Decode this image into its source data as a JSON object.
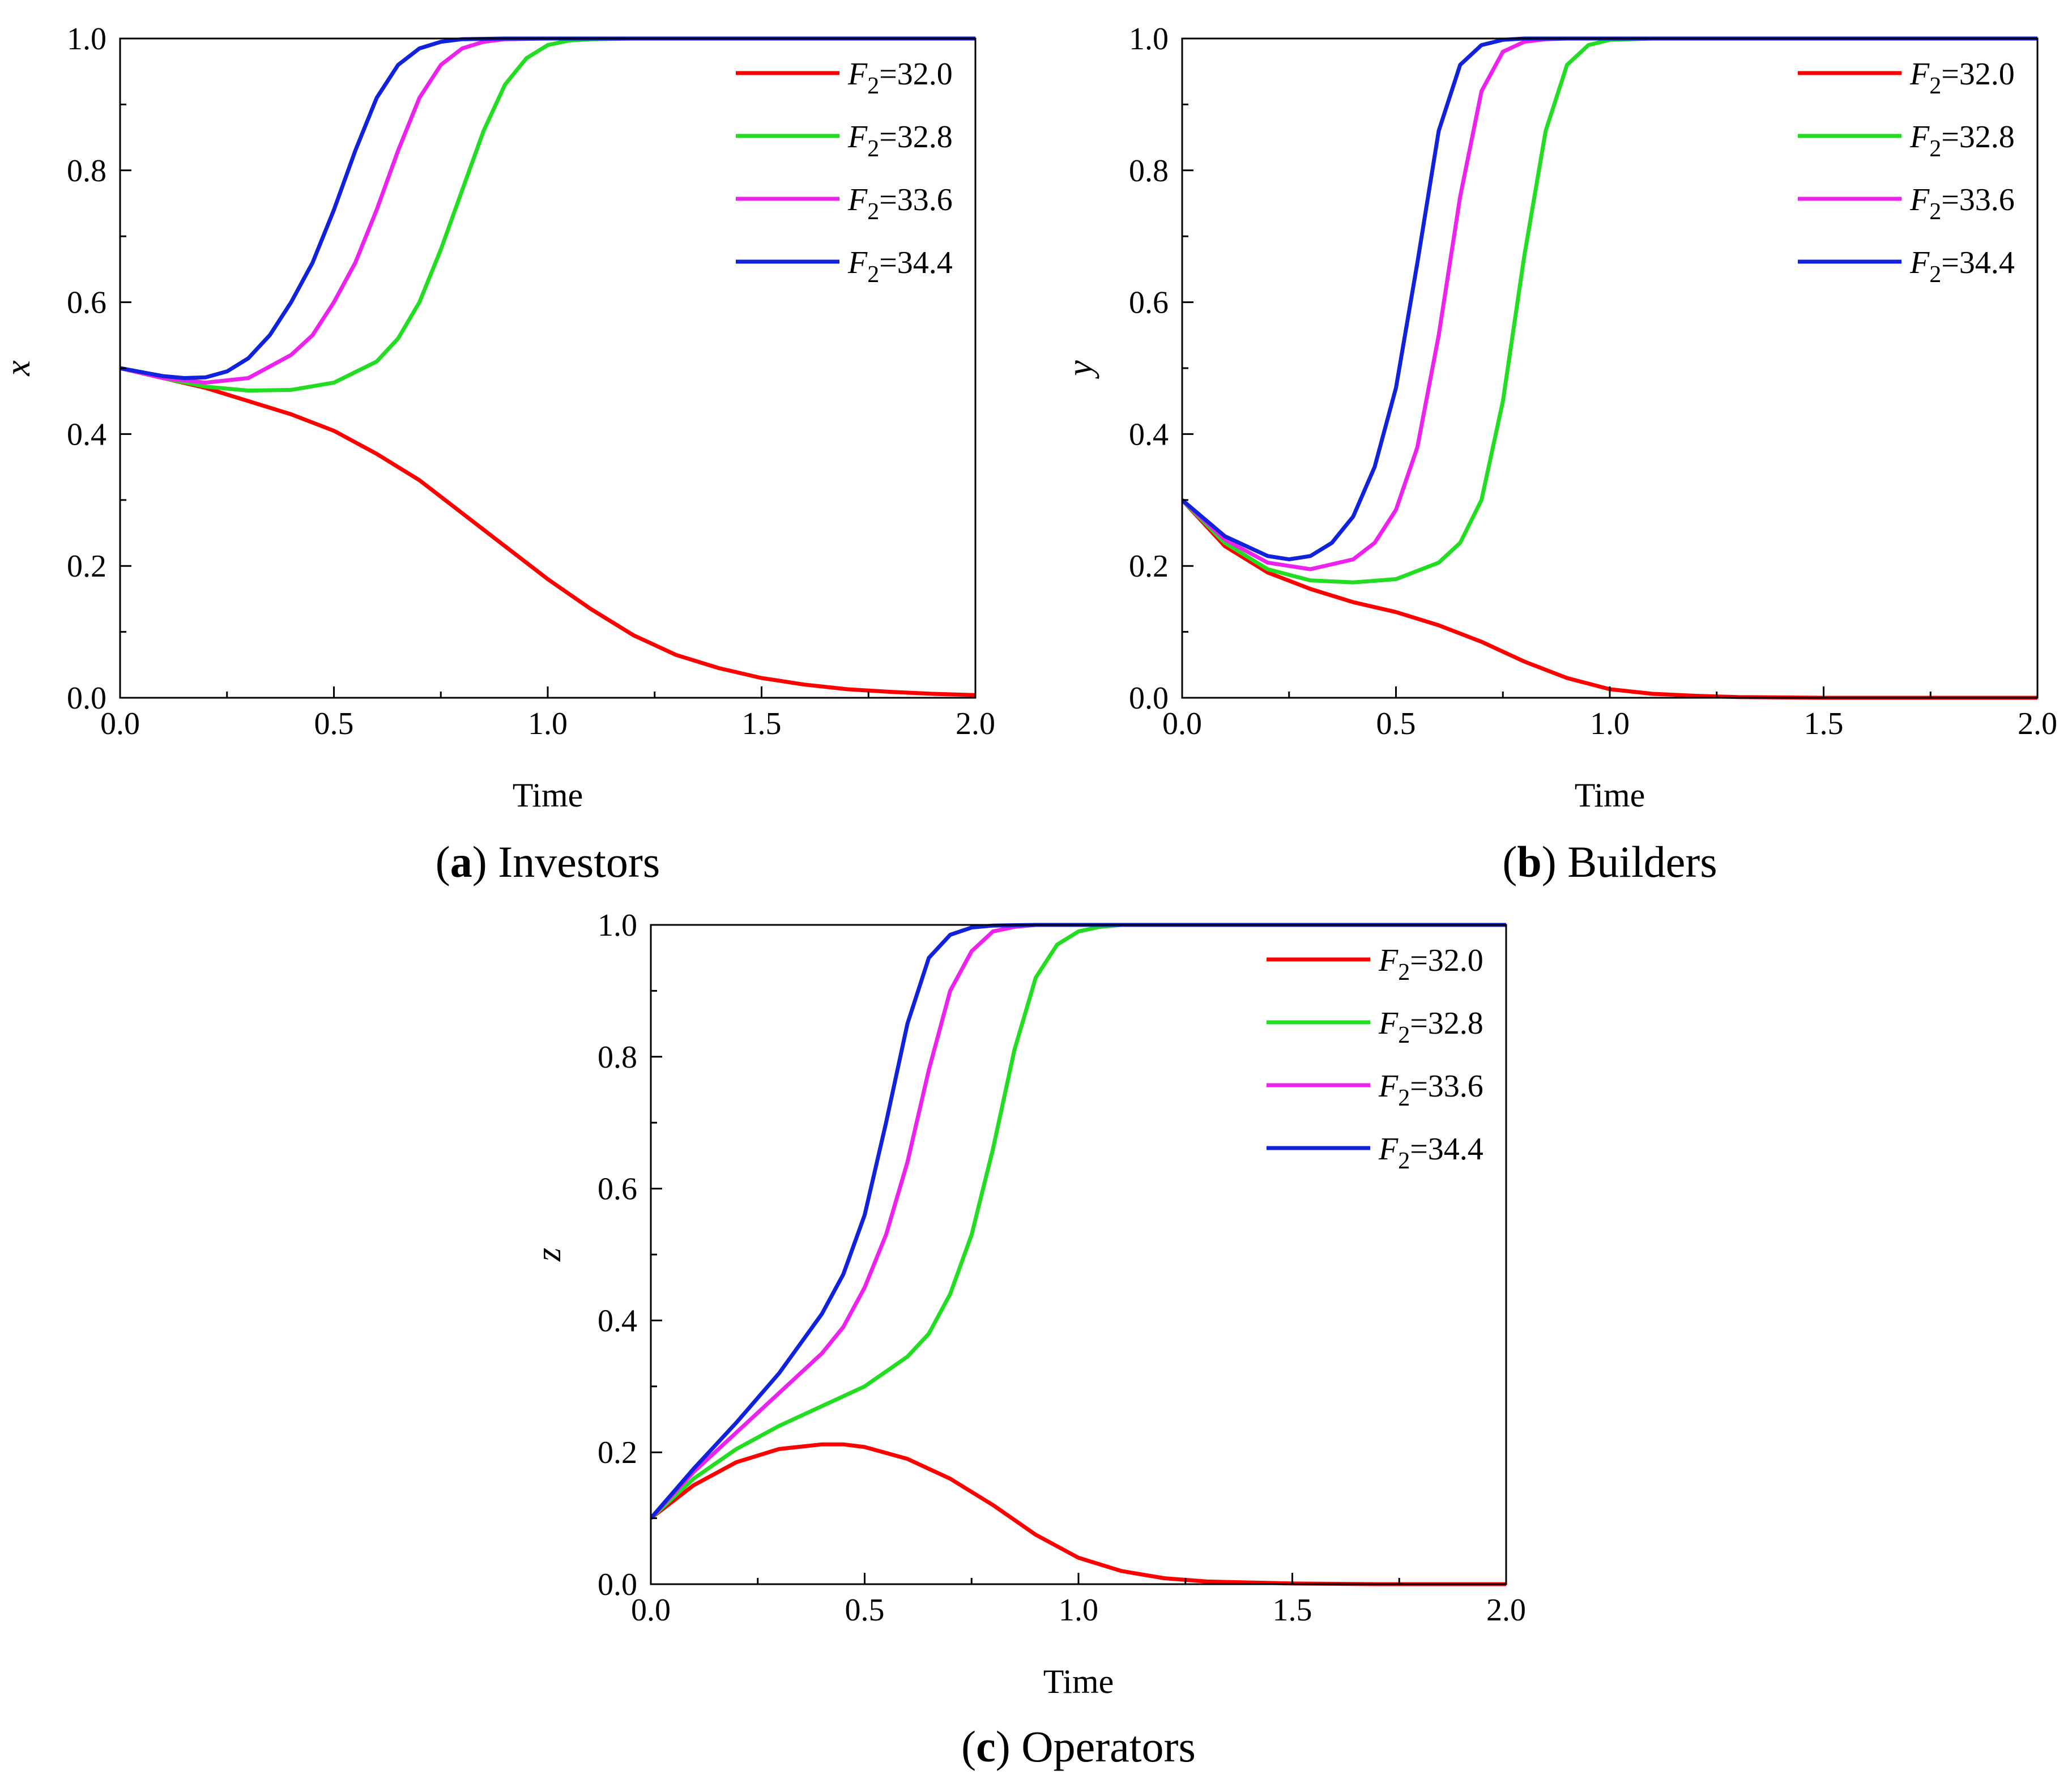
{
  "chart_data": [
    {
      "id": "a",
      "type": "line",
      "caption": {
        "letter": "a",
        "open": "(",
        "close": ")",
        "text": " Investors"
      },
      "xlabel": "Time",
      "ylabel": "x",
      "xlim": [
        0,
        2.0
      ],
      "ylim": [
        0,
        1.0
      ],
      "xticks": [
        "0.0",
        "0.5",
        "1.0",
        "1.5",
        "2.0"
      ],
      "yticks": [
        "0.0",
        "0.2",
        "0.4",
        "0.6",
        "0.8",
        "1.0"
      ],
      "legend_position": "top-right",
      "series": [
        {
          "name": "F2=32.0",
          "sym": "F",
          "sub": "2",
          "val": "=32.0",
          "color": "#ff0000",
          "x": [
            0,
            0.1,
            0.2,
            0.3,
            0.4,
            0.5,
            0.6,
            0.7,
            0.8,
            0.9,
            1.0,
            1.1,
            1.2,
            1.3,
            1.4,
            1.5,
            1.6,
            1.7,
            1.8,
            1.9,
            2.0
          ],
          "y": [
            0.5,
            0.485,
            0.47,
            0.45,
            0.43,
            0.405,
            0.37,
            0.33,
            0.28,
            0.23,
            0.18,
            0.135,
            0.095,
            0.065,
            0.045,
            0.03,
            0.02,
            0.013,
            0.009,
            0.006,
            0.004
          ]
        },
        {
          "name": "F2=32.8",
          "sym": "F",
          "sub": "2",
          "val": "=32.8",
          "color": "#22dd22",
          "x": [
            0,
            0.1,
            0.2,
            0.3,
            0.4,
            0.5,
            0.6,
            0.65,
            0.7,
            0.75,
            0.8,
            0.85,
            0.9,
            0.95,
            1.0,
            1.05,
            1.1,
            1.2,
            1.5,
            2.0
          ],
          "y": [
            0.5,
            0.485,
            0.472,
            0.466,
            0.467,
            0.478,
            0.51,
            0.545,
            0.6,
            0.68,
            0.77,
            0.86,
            0.93,
            0.97,
            0.99,
            0.997,
            0.999,
            1.0,
            1.0,
            1.0
          ]
        },
        {
          "name": "F2=33.6",
          "sym": "F",
          "sub": "2",
          "val": "=33.6",
          "color": "#ee22ee",
          "x": [
            0,
            0.1,
            0.2,
            0.3,
            0.4,
            0.45,
            0.5,
            0.55,
            0.6,
            0.65,
            0.7,
            0.75,
            0.8,
            0.85,
            0.9,
            1.0,
            1.2,
            2.0
          ],
          "y": [
            0.5,
            0.485,
            0.478,
            0.485,
            0.52,
            0.55,
            0.6,
            0.66,
            0.74,
            0.83,
            0.91,
            0.96,
            0.985,
            0.995,
            0.999,
            1.0,
            1.0,
            1.0
          ]
        },
        {
          "name": "F2=34.4",
          "sym": "F",
          "sub": "2",
          "val": "=34.4",
          "color": "#1122dd",
          "x": [
            0,
            0.1,
            0.15,
            0.2,
            0.25,
            0.3,
            0.35,
            0.4,
            0.45,
            0.5,
            0.55,
            0.6,
            0.65,
            0.7,
            0.75,
            0.8,
            0.9,
            1.0,
            2.0
          ],
          "y": [
            0.5,
            0.488,
            0.485,
            0.486,
            0.495,
            0.515,
            0.55,
            0.6,
            0.66,
            0.74,
            0.83,
            0.91,
            0.96,
            0.985,
            0.995,
            0.999,
            1.0,
            1.0,
            1.0
          ]
        }
      ]
    },
    {
      "id": "b",
      "type": "line",
      "caption": {
        "letter": "b",
        "open": "(",
        "close": ")",
        "text": " Builders"
      },
      "xlabel": "Time",
      "ylabel": "y",
      "xlim": [
        0,
        2.0
      ],
      "ylim": [
        0,
        1.0
      ],
      "xticks": [
        "0.0",
        "0.5",
        "1.0",
        "1.5",
        "2.0"
      ],
      "yticks": [
        "0.0",
        "0.2",
        "0.4",
        "0.6",
        "0.8",
        "1.0"
      ],
      "legend_position": "top-right",
      "series": [
        {
          "name": "F2=32.0",
          "sym": "F",
          "sub": "2",
          "val": "=32.0",
          "color": "#ff0000",
          "x": [
            0,
            0.1,
            0.2,
            0.3,
            0.4,
            0.5,
            0.6,
            0.7,
            0.8,
            0.9,
            1.0,
            1.1,
            1.2,
            1.3,
            1.5,
            1.7,
            2.0
          ],
          "y": [
            0.3,
            0.23,
            0.19,
            0.165,
            0.145,
            0.13,
            0.11,
            0.085,
            0.055,
            0.03,
            0.013,
            0.006,
            0.003,
            0.001,
            0.0,
            0.0,
            0.0
          ]
        },
        {
          "name": "F2=32.8",
          "sym": "F",
          "sub": "2",
          "val": "=32.8",
          "color": "#22dd22",
          "x": [
            0,
            0.1,
            0.2,
            0.3,
            0.4,
            0.5,
            0.6,
            0.65,
            0.7,
            0.75,
            0.8,
            0.85,
            0.9,
            0.95,
            1.0,
            1.1,
            1.3,
            2.0
          ],
          "y": [
            0.3,
            0.235,
            0.195,
            0.178,
            0.175,
            0.18,
            0.205,
            0.235,
            0.3,
            0.45,
            0.67,
            0.86,
            0.96,
            0.99,
            0.998,
            1.0,
            1.0,
            1.0
          ]
        },
        {
          "name": "F2=33.6",
          "sym": "F",
          "sub": "2",
          "val": "=33.6",
          "color": "#ee22ee",
          "x": [
            0,
            0.1,
            0.2,
            0.3,
            0.4,
            0.45,
            0.5,
            0.55,
            0.6,
            0.65,
            0.7,
            0.75,
            0.8,
            0.85,
            0.9,
            1.0,
            2.0
          ],
          "y": [
            0.3,
            0.24,
            0.205,
            0.195,
            0.21,
            0.235,
            0.285,
            0.38,
            0.55,
            0.76,
            0.92,
            0.98,
            0.995,
            0.999,
            1.0,
            1.0,
            1.0
          ]
        },
        {
          "name": "F2=34.4",
          "sym": "F",
          "sub": "2",
          "val": "=34.4",
          "color": "#1122dd",
          "x": [
            0,
            0.1,
            0.2,
            0.25,
            0.3,
            0.35,
            0.4,
            0.45,
            0.5,
            0.55,
            0.6,
            0.65,
            0.7,
            0.75,
            0.8,
            0.9,
            2.0
          ],
          "y": [
            0.3,
            0.245,
            0.215,
            0.21,
            0.215,
            0.235,
            0.275,
            0.35,
            0.47,
            0.66,
            0.86,
            0.96,
            0.99,
            0.998,
            1.0,
            1.0,
            1.0
          ]
        }
      ]
    },
    {
      "id": "c",
      "type": "line",
      "caption": {
        "letter": "c",
        "open": "(",
        "close": ")",
        "text": " Operators"
      },
      "xlabel": "Time",
      "ylabel": "z",
      "xlim": [
        0,
        2.0
      ],
      "ylim": [
        0,
        1.0
      ],
      "xticks": [
        "0.0",
        "0.5",
        "1.0",
        "1.5",
        "2.0"
      ],
      "yticks": [
        "0.0",
        "0.2",
        "0.4",
        "0.6",
        "0.8",
        "1.0"
      ],
      "legend_position": "top-right",
      "series": [
        {
          "name": "F2=32.0",
          "sym": "F",
          "sub": "2",
          "val": "=32.0",
          "color": "#ff0000",
          "x": [
            0,
            0.1,
            0.2,
            0.3,
            0.4,
            0.45,
            0.5,
            0.6,
            0.7,
            0.8,
            0.9,
            1.0,
            1.1,
            1.2,
            1.3,
            1.5,
            1.7,
            2.0
          ],
          "y": [
            0.1,
            0.15,
            0.185,
            0.205,
            0.212,
            0.212,
            0.208,
            0.19,
            0.16,
            0.12,
            0.075,
            0.04,
            0.02,
            0.009,
            0.004,
            0.001,
            0.0,
            0.0
          ]
        },
        {
          "name": "F2=32.8",
          "sym": "F",
          "sub": "2",
          "val": "=32.8",
          "color": "#22dd22",
          "x": [
            0,
            0.1,
            0.2,
            0.3,
            0.4,
            0.5,
            0.6,
            0.65,
            0.7,
            0.75,
            0.8,
            0.85,
            0.9,
            0.95,
            1.0,
            1.05,
            1.1,
            1.3,
            2.0
          ],
          "y": [
            0.1,
            0.16,
            0.205,
            0.24,
            0.27,
            0.3,
            0.345,
            0.38,
            0.44,
            0.53,
            0.66,
            0.81,
            0.92,
            0.97,
            0.99,
            0.997,
            1.0,
            1.0,
            1.0
          ]
        },
        {
          "name": "F2=33.6",
          "sym": "F",
          "sub": "2",
          "val": "=33.6",
          "color": "#ee22ee",
          "x": [
            0,
            0.1,
            0.2,
            0.3,
            0.4,
            0.45,
            0.5,
            0.55,
            0.6,
            0.65,
            0.7,
            0.75,
            0.8,
            0.85,
            0.9,
            1.0,
            2.0
          ],
          "y": [
            0.1,
            0.17,
            0.23,
            0.29,
            0.35,
            0.39,
            0.45,
            0.53,
            0.64,
            0.78,
            0.9,
            0.96,
            0.99,
            0.997,
            1.0,
            1.0,
            1.0
          ]
        },
        {
          "name": "F2=34.4",
          "sym": "F",
          "sub": "2",
          "val": "=34.4",
          "color": "#1122dd",
          "x": [
            0,
            0.1,
            0.2,
            0.3,
            0.4,
            0.45,
            0.5,
            0.55,
            0.6,
            0.65,
            0.7,
            0.75,
            0.8,
            0.9,
            1.0,
            2.0
          ],
          "y": [
            0.1,
            0.175,
            0.245,
            0.32,
            0.41,
            0.47,
            0.56,
            0.7,
            0.85,
            0.95,
            0.985,
            0.996,
            0.999,
            1.0,
            1.0,
            1.0
          ]
        }
      ]
    }
  ]
}
